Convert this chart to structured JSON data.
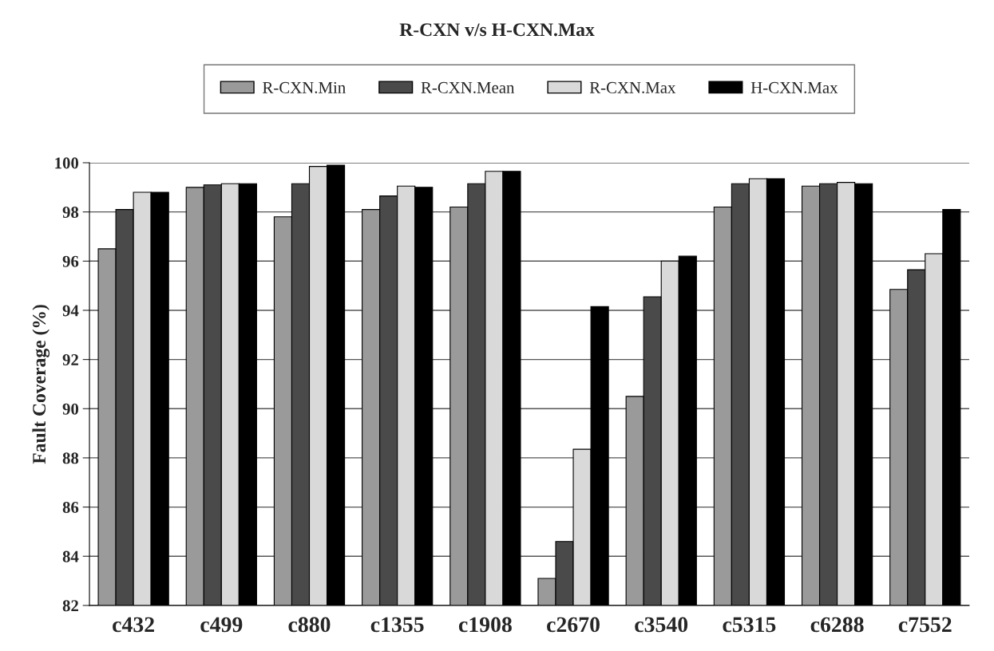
{
  "chart_data": {
    "type": "bar",
    "title": "R-CXN v/s H-CXN.Max",
    "ylabel": "Fault Coverage (%)",
    "categories": [
      "c432",
      "c499",
      "c880",
      "c1355",
      "c1908",
      "c2670",
      "c3540",
      "c5315",
      "c6288",
      "c7552"
    ],
    "series": [
      {
        "name": "R-CXN.Min",
        "color": "#9a9a9a",
        "values": [
          96.5,
          99.0,
          97.8,
          98.1,
          98.2,
          83.1,
          90.5,
          98.2,
          99.05,
          94.85
        ]
      },
      {
        "name": "R-CXN.Mean",
        "color": "#4a4a4a",
        "values": [
          98.1,
          99.1,
          99.15,
          98.65,
          99.15,
          84.6,
          94.55,
          99.15,
          99.15,
          95.65
        ]
      },
      {
        "name": "R-CXN.Max",
        "color": "#d9d9d9",
        "values": [
          98.8,
          99.15,
          99.85,
          99.05,
          99.65,
          88.35,
          96.0,
          99.35,
          99.2,
          96.3
        ]
      },
      {
        "name": "H-CXN.Max",
        "color": "#000000",
        "values": [
          98.8,
          99.15,
          99.9,
          99.0,
          99.65,
          94.15,
          96.2,
          99.35,
          99.15,
          98.1
        ]
      }
    ],
    "ylim": [
      82,
      100
    ],
    "yticks": [
      82,
      84,
      86,
      88,
      90,
      92,
      94,
      96,
      98,
      100
    ],
    "grid": "y",
    "legend": "top"
  }
}
